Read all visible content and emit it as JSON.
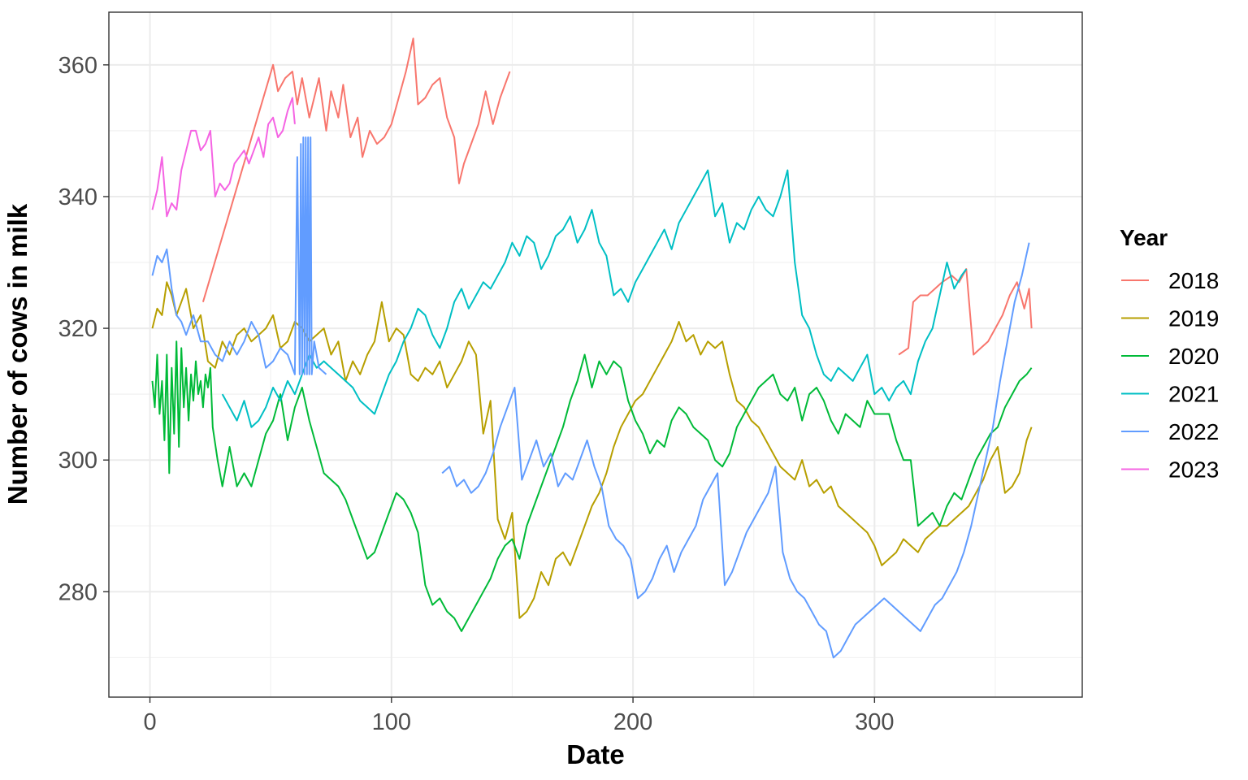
{
  "chart_data": {
    "type": "line",
    "xlabel": "Date",
    "ylabel": "Number of cows in milk",
    "xlim": [
      -17,
      386
    ],
    "ylim": [
      264,
      368
    ],
    "x_ticks": [
      0,
      100,
      200,
      300
    ],
    "y_ticks": [
      280,
      300,
      320,
      340,
      360
    ],
    "grid": true,
    "legend": {
      "title": "Year",
      "position": "right"
    },
    "series": [
      {
        "name": "2018",
        "color": "#F8766D",
        "x": [
          22,
          51,
          53,
          56,
          59,
          61,
          63,
          66,
          68,
          70,
          73,
          75,
          78,
          80,
          83,
          86,
          88,
          91,
          94,
          97,
          100,
          103,
          106,
          109,
          111,
          114,
          117,
          120,
          123,
          126,
          128,
          130,
          133,
          136,
          139,
          142,
          145,
          149
        ],
        "y": [
          324,
          360,
          356,
          358,
          359,
          354,
          358,
          352,
          355,
          358,
          350,
          356,
          352,
          357,
          349,
          352,
          346,
          350,
          348,
          349,
          351,
          355,
          359,
          364,
          354,
          355,
          357,
          358,
          352,
          349,
          342,
          345,
          348,
          351,
          356,
          351,
          355,
          359
        ]
      },
      {
        "name": "2018",
        "color": "#F8766D",
        "x": [
          310,
          314,
          316,
          319,
          322,
          325,
          328,
          332,
          335,
          338,
          341,
          344,
          347,
          350,
          353,
          356,
          359,
          362,
          364,
          365
        ],
        "y": [
          316,
          317,
          324,
          325,
          325,
          326,
          327,
          328,
          327,
          329,
          316,
          317,
          318,
          320,
          322,
          325,
          327,
          323,
          326,
          320
        ]
      },
      {
        "name": "2019",
        "color": "#B79F00",
        "x": [
          1,
          3,
          5,
          7,
          9,
          11,
          13,
          15,
          18,
          21,
          24,
          27,
          30,
          33,
          36,
          39,
          42,
          45,
          48,
          51,
          54,
          57,
          60,
          63,
          66,
          69,
          72,
          75,
          78,
          81,
          84,
          87,
          90,
          93,
          96,
          99,
          102,
          105,
          108,
          111,
          114,
          117,
          120,
          123,
          126,
          129,
          132,
          135,
          138,
          141,
          144,
          147,
          150,
          153,
          156,
          159,
          162,
          165,
          168,
          171,
          174,
          177,
          180,
          183,
          186,
          189,
          192,
          195,
          198,
          201,
          204,
          207,
          210,
          213,
          216,
          219,
          222,
          225,
          228,
          231,
          234,
          237,
          240,
          243,
          246,
          249,
          252,
          255,
          258,
          261,
          264,
          267,
          270,
          273,
          276,
          279,
          282,
          285,
          288,
          291,
          294,
          297,
          300,
          303,
          306,
          309,
          312,
          315,
          318,
          321,
          324,
          327,
          330,
          333,
          336,
          339,
          342,
          345,
          348,
          351,
          354,
          357,
          360,
          363,
          365
        ],
        "y": [
          320,
          323,
          322,
          327,
          325,
          322,
          324,
          326,
          320,
          322,
          315,
          314,
          318,
          316,
          319,
          320,
          318,
          319,
          320,
          322,
          317,
          318,
          321,
          320,
          318,
          319,
          320,
          316,
          318,
          312,
          315,
          313,
          316,
          318,
          324,
          318,
          320,
          319,
          313,
          312,
          314,
          313,
          315,
          311,
          313,
          315,
          318,
          316,
          304,
          309,
          291,
          288,
          292,
          276,
          277,
          279,
          283,
          281,
          285,
          286,
          284,
          287,
          290,
          293,
          295,
          298,
          302,
          305,
          307,
          309,
          310,
          312,
          314,
          316,
          318,
          321,
          318,
          319,
          316,
          318,
          317,
          318,
          313,
          309,
          308,
          306,
          305,
          303,
          301,
          299,
          298,
          297,
          300,
          296,
          297,
          295,
          296,
          293,
          292,
          291,
          290,
          289,
          287,
          284,
          285,
          286,
          288,
          287,
          286,
          288,
          289,
          290,
          290,
          291,
          292,
          293,
          295,
          297,
          300,
          302,
          295,
          296,
          298,
          303,
          305
        ]
      },
      {
        "name": "2020",
        "color": "#00BA38",
        "x": [
          1,
          2,
          3,
          4,
          5,
          6,
          7,
          8,
          9,
          10,
          11,
          12,
          13,
          14,
          15,
          16,
          17,
          18,
          19,
          20,
          21,
          22,
          23,
          24,
          25,
          26,
          28,
          30,
          33,
          36,
          39,
          42,
          45,
          48,
          51,
          54,
          57,
          60,
          63,
          66,
          69,
          72,
          75,
          78,
          81,
          84,
          87,
          90,
          93,
          96,
          99,
          102,
          105,
          108,
          111,
          114,
          117,
          120,
          123,
          126,
          129,
          132,
          135,
          138,
          141,
          144,
          147,
          150,
          153,
          156,
          159,
          162,
          165,
          168,
          171,
          174,
          177,
          180,
          183,
          186,
          189,
          192,
          195,
          198,
          201,
          204,
          207,
          210,
          213,
          216,
          219,
          222,
          225,
          228,
          231,
          234,
          237,
          240,
          243,
          246,
          249,
          252,
          255,
          258,
          261,
          264,
          267,
          270,
          273,
          276,
          279,
          282,
          285,
          288,
          291,
          294,
          297,
          300,
          303,
          306,
          309,
          312,
          315,
          318,
          321,
          324,
          327,
          330,
          333,
          336,
          339,
          342,
          345,
          348,
          351,
          354,
          357,
          360,
          363,
          365
        ],
        "y": [
          312,
          308,
          316,
          307,
          312,
          303,
          316,
          298,
          314,
          304,
          318,
          302,
          317,
          308,
          314,
          306,
          313,
          309,
          315,
          310,
          312,
          308,
          313,
          311,
          314,
          305,
          300,
          296,
          302,
          296,
          298,
          296,
          300,
          304,
          306,
          310,
          303,
          308,
          311,
          306,
          302,
          298,
          297,
          296,
          294,
          291,
          288,
          285,
          286,
          289,
          292,
          295,
          294,
          292,
          289,
          281,
          278,
          279,
          277,
          276,
          274,
          276,
          278,
          280,
          282,
          285,
          287,
          288,
          285,
          290,
          293,
          296,
          299,
          302,
          305,
          309,
          312,
          316,
          311,
          315,
          313,
          315,
          314,
          309,
          306,
          304,
          301,
          303,
          302,
          306,
          308,
          307,
          305,
          304,
          303,
          300,
          299,
          301,
          305,
          307,
          309,
          311,
          312,
          313,
          310,
          309,
          311,
          306,
          310,
          311,
          309,
          306,
          304,
          307,
          306,
          305,
          309,
          307,
          307,
          307,
          303,
          300,
          300,
          290,
          291,
          292,
          290,
          293,
          295,
          294,
          297,
          300,
          302,
          304,
          305,
          308,
          310,
          312,
          313,
          314
        ]
      },
      {
        "name": "2021",
        "color": "#00BFC4",
        "x": [
          30,
          33,
          36,
          39,
          42,
          45,
          48,
          51,
          54,
          57,
          60,
          63,
          66,
          69,
          72,
          75,
          78,
          81,
          84,
          87,
          90,
          93,
          96,
          99,
          102,
          105,
          108,
          111,
          114,
          117,
          120,
          123,
          126,
          129,
          132,
          135,
          138,
          141,
          144,
          147,
          150,
          153,
          156,
          159,
          162,
          165,
          168,
          171,
          174,
          177,
          180,
          183,
          186,
          189,
          192,
          195,
          198,
          201,
          204,
          207,
          210,
          213,
          216,
          219,
          222,
          225,
          228,
          231,
          234,
          237,
          240,
          243,
          246,
          249,
          252,
          255,
          258,
          261,
          264,
          267,
          270,
          273,
          276,
          279,
          282,
          285,
          288,
          291,
          294,
          297,
          300,
          303,
          306,
          309,
          312,
          315,
          318,
          321,
          324,
          327,
          330,
          333,
          336,
          338
        ],
        "y": [
          310,
          308,
          306,
          309,
          305,
          306,
          308,
          311,
          309,
          312,
          310,
          313,
          316,
          314,
          315,
          314,
          313,
          312,
          311,
          309,
          308,
          307,
          310,
          313,
          315,
          318,
          320,
          323,
          322,
          319,
          317,
          320,
          324,
          326,
          323,
          325,
          327,
          326,
          328,
          330,
          333,
          331,
          334,
          333,
          329,
          331,
          334,
          335,
          337,
          333,
          335,
          338,
          333,
          331,
          325,
          326,
          324,
          327,
          329,
          331,
          333,
          335,
          332,
          336,
          338,
          340,
          342,
          344,
          337,
          339,
          333,
          336,
          335,
          338,
          340,
          338,
          337,
          340,
          344,
          330,
          322,
          320,
          316,
          313,
          312,
          314,
          313,
          312,
          314,
          316,
          310,
          311,
          309,
          311,
          312,
          310,
          315,
          318,
          320,
          325,
          330,
          326,
          328,
          329
        ]
      },
      {
        "name": "2022",
        "color": "#619CFF",
        "x": [
          1,
          3,
          5,
          7,
          9,
          11,
          13,
          15,
          18,
          21,
          24,
          27,
          30,
          33,
          36,
          39,
          42,
          45,
          48,
          51,
          54,
          57,
          60,
          61,
          62,
          62.5,
          63,
          63.5,
          64,
          64.5,
          65,
          65.5,
          66,
          66.5,
          67,
          68,
          70,
          73
        ],
        "y": [
          328,
          331,
          330,
          332,
          326,
          322,
          321,
          319,
          322,
          318,
          318,
          316,
          315,
          318,
          316,
          318,
          321,
          319,
          314,
          315,
          317,
          316,
          313,
          346,
          313,
          348,
          313,
          349,
          313,
          349,
          313,
          349,
          313,
          349,
          313,
          318,
          314,
          313
        ]
      },
      {
        "name": "2022",
        "color": "#619CFF",
        "x": [
          121,
          124,
          127,
          130,
          133,
          136,
          139,
          142,
          145,
          148,
          151,
          154,
          157,
          160,
          163,
          166,
          169,
          172,
          175,
          178,
          181,
          184,
          187,
          190,
          193,
          196,
          199,
          202,
          205,
          208,
          211,
          214,
          217,
          220,
          223,
          226,
          229,
          232,
          235,
          238,
          241,
          244,
          247,
          250,
          253,
          256,
          259,
          262,
          265,
          268,
          271,
          274,
          277,
          280,
          283,
          286,
          289,
          292,
          295,
          298,
          301,
          304,
          307,
          310,
          313,
          316,
          319,
          322,
          325,
          328,
          331,
          334,
          337,
          340,
          343,
          346,
          349,
          352,
          355,
          358,
          361,
          364
        ],
        "y": [
          298,
          299,
          296,
          297,
          295,
          296,
          298,
          301,
          305,
          308,
          311,
          297,
          300,
          303,
          299,
          301,
          296,
          298,
          297,
          300,
          303,
          299,
          296,
          290,
          288,
          287,
          285,
          279,
          280,
          282,
          285,
          287,
          283,
          286,
          288,
          290,
          294,
          296,
          298,
          281,
          283,
          286,
          289,
          291,
          293,
          295,
          299,
          286,
          282,
          280,
          279,
          277,
          275,
          274,
          270,
          271,
          273,
          275,
          276,
          277,
          278,
          279,
          278,
          277,
          276,
          275,
          274,
          276,
          278,
          279,
          281,
          283,
          286,
          290,
          295,
          300,
          305,
          312,
          318,
          324,
          328,
          333
        ]
      },
      {
        "name": "2023",
        "color": "#F564E3",
        "x": [
          1,
          3,
          5,
          7,
          9,
          11,
          13,
          15,
          17,
          19,
          21,
          23,
          25,
          27,
          29,
          31,
          33,
          35,
          37,
          39,
          41,
          43,
          45,
          47,
          49,
          51,
          53,
          55,
          57,
          59,
          60
        ],
        "y": [
          338,
          341,
          346,
          337,
          339,
          338,
          344,
          347,
          350,
          350,
          347,
          348,
          350,
          340,
          342,
          341,
          342,
          345,
          346,
          347,
          345,
          347,
          349,
          346,
          351,
          352,
          349,
          350,
          353,
          355,
          351
        ]
      }
    ],
    "legend_entries": [
      {
        "label": "2018",
        "color": "#F8766D"
      },
      {
        "label": "2019",
        "color": "#B79F00"
      },
      {
        "label": "2020",
        "color": "#00BA38"
      },
      {
        "label": "2021",
        "color": "#00BFC4"
      },
      {
        "label": "2022",
        "color": "#619CFF"
      },
      {
        "label": "2023",
        "color": "#F564E3"
      }
    ]
  }
}
